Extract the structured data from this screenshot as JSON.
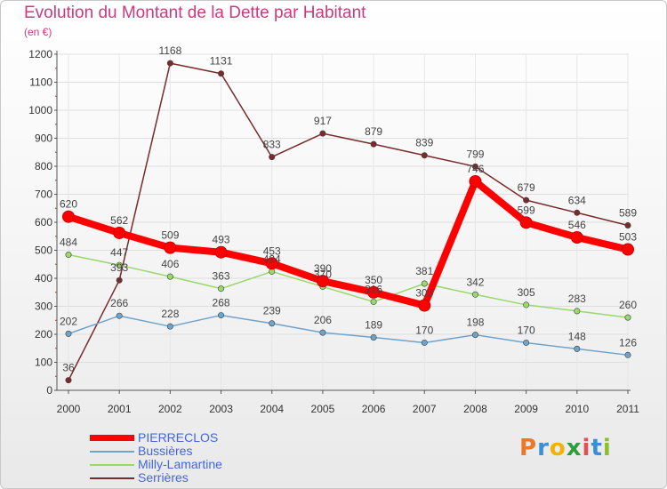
{
  "header": {
    "title": "Evolution du Montant de la Dette par Habitant",
    "subtitle": "(en €)"
  },
  "logo": {
    "letters": [
      "P",
      "r",
      "o",
      "x",
      "i",
      "t",
      "i"
    ],
    "colors": [
      "#e8792b",
      "#3a8fd4",
      "#f0b400",
      "#2e9e3a",
      "#e05252",
      "#3a8fd4",
      "#8bbf2f"
    ]
  },
  "chart_data": {
    "type": "line",
    "title": "Evolution du Montant de la Dette par Habitant",
    "subtitle": "(en €)",
    "x": [
      "2000",
      "2001",
      "2002",
      "2003",
      "2004",
      "2005",
      "2006",
      "2007",
      "2008",
      "2009",
      "2010",
      "2011"
    ],
    "ylim": [
      0,
      1200
    ],
    "yticks": [
      0,
      100,
      200,
      300,
      400,
      500,
      600,
      700,
      800,
      900,
      1000,
      1100,
      1200
    ],
    "grid": true,
    "legend_position": "bottom-left",
    "series": [
      {
        "name": "Serrières",
        "color": "#7a2a2a",
        "values": [
          36,
          393,
          1168,
          1131,
          833,
          917,
          879,
          839,
          799,
          679,
          634,
          589
        ]
      },
      {
        "name": "Milly-Lamartine",
        "color": "#99d86a",
        "values": [
          484,
          447,
          406,
          363,
          424,
          370,
          316,
          381,
          342,
          305,
          283,
          260
        ]
      },
      {
        "name": "Bussières",
        "color": "#6ea3cc",
        "values": [
          202,
          266,
          228,
          268,
          239,
          206,
          189,
          170,
          198,
          170,
          148,
          126
        ]
      },
      {
        "name": "PIERRECLOS",
        "color": "#ff0000",
        "values": [
          620,
          562,
          509,
          493,
          453,
          390,
          350,
          303,
          746,
          599,
          546,
          503
        ]
      }
    ],
    "legend": [
      "PIERRECLOS",
      "Bussières",
      "Milly-Lamartine",
      "Serrières"
    ]
  }
}
